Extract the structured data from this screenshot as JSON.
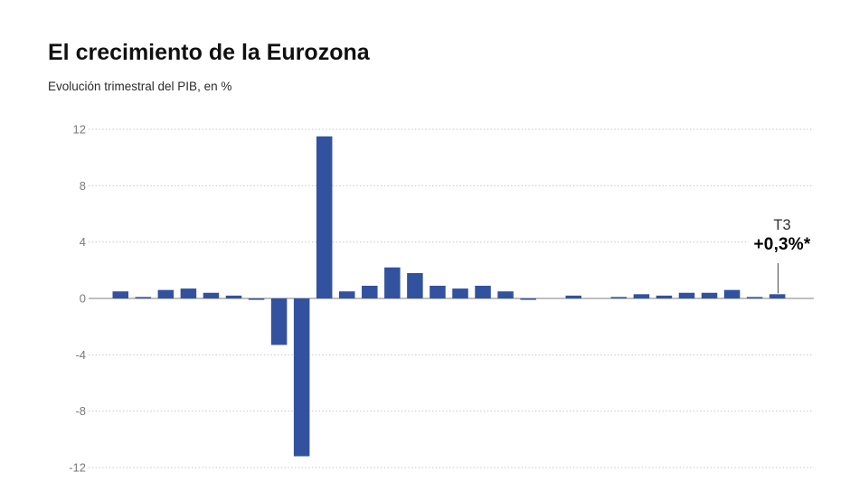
{
  "header": {
    "title": "El crecimiento de la Eurozona",
    "subtitle": "Evolución trimestral del PIB, en %"
  },
  "annotation": {
    "quarter": "T3",
    "value": "+0,3%*"
  },
  "colors": {
    "bar": "#32519f",
    "grid": "#c3c3c3",
    "zero_line": "#9a9a9a",
    "axis_label": "#7a7a7a",
    "annotation_line": "#4a4a4a",
    "title_text": "#101010",
    "subtitle_text": "#2b2b2b"
  },
  "chart_data": {
    "type": "bar",
    "title": "El crecimiento de la Eurozona",
    "subtitle": "Evolución trimestral del PIB, en %",
    "xlabel": "",
    "ylabel": "Evolución trimestral del PIB, en %",
    "ylim": [
      -12,
      12
    ],
    "yticks": [
      12,
      8,
      4,
      0,
      -4,
      -8,
      -12
    ],
    "grid": "horizontal dotted",
    "legend": "none",
    "x_axis_labels": "none (quarters unlabeled)",
    "values": [
      0.5,
      0.1,
      0.6,
      0.7,
      0.4,
      0.2,
      -0.1,
      -3.3,
      -11.2,
      11.5,
      0.5,
      0.9,
      2.2,
      1.8,
      0.9,
      0.7,
      0.9,
      0.5,
      -0.1,
      0.0,
      0.2,
      0.0,
      0.1,
      0.3,
      0.2,
      0.4,
      0.4,
      0.6,
      0.1,
      0.3
    ],
    "last_point_label": "T3 +0,3%*"
  }
}
